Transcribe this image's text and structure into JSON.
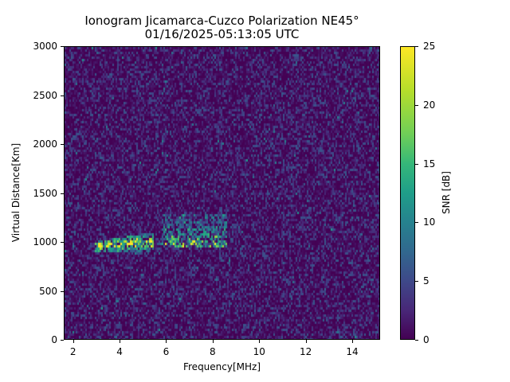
{
  "chart_data": {
    "type": "heatmap",
    "title": "Ionogram Jicamarca-Cuzco Polarization NE45°",
    "subtitle": "01/16/2025-05:13:05 UTC",
    "xlabel": "Frequency[MHz]",
    "ylabel": "Virtual Distance[Km]",
    "xlim": [
      1.6,
      15.2
    ],
    "ylim": [
      0,
      3000
    ],
    "x_ticks": [
      2,
      4,
      6,
      8,
      10,
      12,
      14
    ],
    "y_ticks": [
      0,
      500,
      1000,
      1500,
      2000,
      2500,
      3000
    ],
    "colorbar": {
      "label": "SNR [dB]",
      "range": [
        0,
        25
      ],
      "ticks": [
        0,
        5,
        10,
        15,
        20,
        25
      ],
      "colormap": "viridis"
    },
    "features": [
      {
        "description": "Main trace (bright yellow/green)",
        "freq_range_mhz": [
          2.9,
          5.3
        ],
        "virtual_distance_km": [
          940,
          1050
        ],
        "snr_db_peak": 25
      },
      {
        "description": "Spread echoes (green/yellow)",
        "freq_range_mhz": [
          5.8,
          8.6
        ],
        "virtual_distance_km": [
          950,
          1280
        ],
        "snr_db_peak": 22
      },
      {
        "description": "Background noise",
        "freq_range_mhz": [
          1.6,
          15.2
        ],
        "virtual_distance_km": [
          0,
          3000
        ],
        "snr_db_typical": [
          0,
          5
        ]
      }
    ],
    "grid": false,
    "legend": "colorbar right"
  },
  "labels": {
    "title": "Ionogram Jicamarca-Cuzco Polarization NE45°",
    "subtitle": "01/16/2025-05:13:05 UTC",
    "xlabel": "Frequency[MHz]",
    "ylabel": "Virtual Distance[Km]",
    "clabel": "SNR [dB]",
    "xticks": [
      "2",
      "4",
      "6",
      "8",
      "10",
      "12",
      "14"
    ],
    "yticks": [
      "0",
      "500",
      "1000",
      "1500",
      "2000",
      "2500",
      "3000"
    ],
    "cticks": [
      "0",
      "5",
      "10",
      "15",
      "20",
      "25"
    ]
  }
}
